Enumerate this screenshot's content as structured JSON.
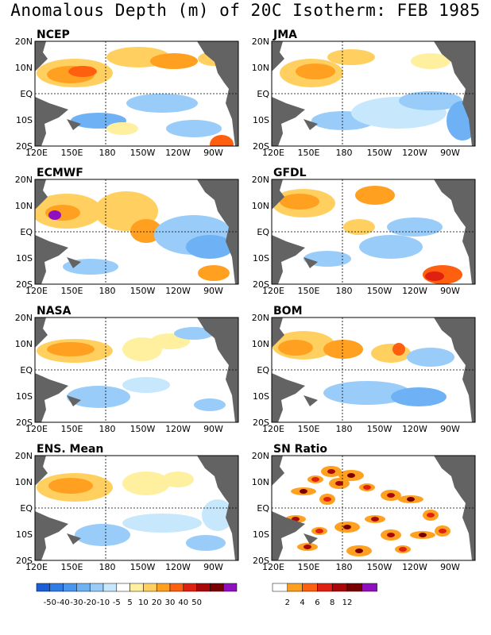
{
  "title": "Anomalous Depth (m) of 20C Isotherm: FEB 1985",
  "axes": {
    "y_ticks": [
      "20N",
      "10N",
      "EQ",
      "10S",
      "20S"
    ],
    "x_ticks": [
      "120E",
      "150E",
      "180",
      "150W",
      "120W",
      "90W"
    ]
  },
  "panels": [
    {
      "label": "NCEP"
    },
    {
      "label": "JMA"
    },
    {
      "label": "ECMWF"
    },
    {
      "label": "GFDL"
    },
    {
      "label": "NASA"
    },
    {
      "label": "BOM"
    },
    {
      "label": "ENS. Mean"
    },
    {
      "label": "SN Ratio"
    }
  ],
  "colors": {
    "land": "#636363",
    "anomaly_negative": [
      "#1a5fd6",
      "#2f7ce6",
      "#4a96ef",
      "#6eb2f5",
      "#99ccf9",
      "#c7e8fc"
    ],
    "anomaly_positive": [
      "#fff0a0",
      "#ffd060",
      "#ffa020",
      "#ff6010",
      "#e02010",
      "#a80808",
      "#780000",
      "#9010c0"
    ],
    "sn_ratio": [
      "#ffffff",
      "#ffa020",
      "#ff6010",
      "#e02010",
      "#a80808",
      "#780000",
      "#9010c0"
    ]
  },
  "legends": {
    "anomaly": {
      "labels": [
        "-50",
        "-40",
        "-30",
        "-20",
        "-10",
        "-5",
        "5",
        "10",
        "20",
        "30",
        "40",
        "50"
      ]
    },
    "sn_ratio": {
      "labels": [
        "2",
        "4",
        "6",
        "8",
        "12"
      ]
    }
  }
}
